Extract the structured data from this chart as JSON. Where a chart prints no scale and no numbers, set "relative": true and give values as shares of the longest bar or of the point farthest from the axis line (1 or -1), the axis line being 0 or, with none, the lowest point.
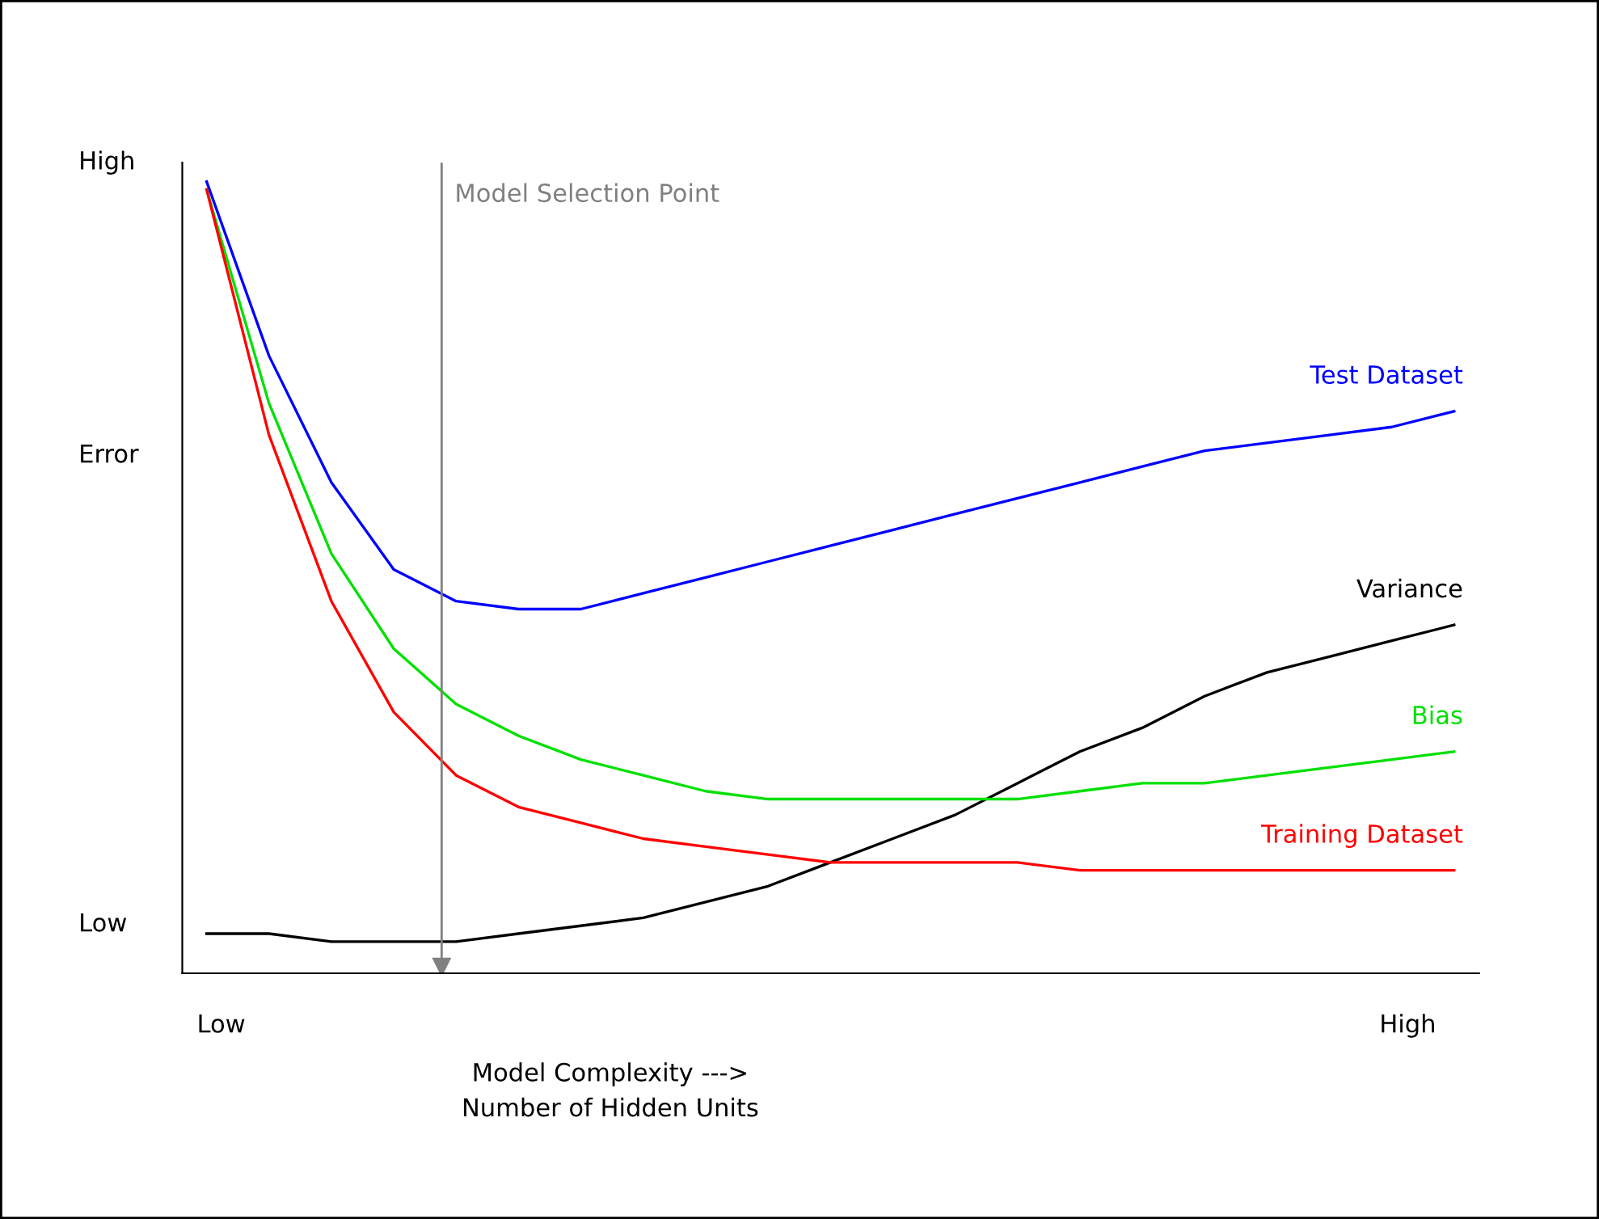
{
  "chart_data": {
    "type": "line",
    "relative": true,
    "ylabel": "Error",
    "xlabel": "Model Complexity --->\nNumber of Hidden Units",
    "categories": [
      null,
      null,
      null,
      null,
      null,
      null,
      null,
      null,
      null,
      null,
      null,
      null,
      null,
      null,
      null,
      null,
      null,
      null,
      null,
      null,
      null
    ],
    "series": [
      {
        "name": "Test Dataset",
        "color": "#0000ff",
        "values": [
          1.0,
          0.78,
          0.62,
          0.51,
          0.47,
          0.46,
          0.46,
          0.48,
          0.5,
          0.52,
          0.54,
          0.56,
          0.58,
          0.6,
          0.62,
          0.64,
          0.66,
          0.67,
          0.68,
          0.69,
          0.71
        ]
      },
      {
        "name": "Variance",
        "color": "#000000",
        "values": [
          0.05,
          0.05,
          0.04,
          0.04,
          0.04,
          0.05,
          0.06,
          0.07,
          0.09,
          0.11,
          0.14,
          0.17,
          0.2,
          0.24,
          0.28,
          0.31,
          0.35,
          0.38,
          0.4,
          0.42,
          0.44
        ]
      },
      {
        "name": "Bias",
        "color": "#00e000",
        "values": [
          0.99,
          0.72,
          0.53,
          0.41,
          0.34,
          0.3,
          0.27,
          0.25,
          0.23,
          0.22,
          0.22,
          0.22,
          0.22,
          0.22,
          0.23,
          0.24,
          0.24,
          0.25,
          0.26,
          0.27,
          0.28
        ]
      },
      {
        "name": "Training Dataset",
        "color": "#ff0000",
        "values": [
          0.99,
          0.68,
          0.47,
          0.33,
          0.25,
          0.21,
          0.19,
          0.17,
          0.16,
          0.15,
          0.14,
          0.14,
          0.14,
          0.14,
          0.13,
          0.13,
          0.13,
          0.13,
          0.13,
          0.13,
          0.13
        ]
      }
    ],
    "annotations": [
      "High",
      "Low",
      "Low",
      "High",
      "Model Selection Point"
    ],
    "legend": false,
    "marker": "none",
    "line_style": "solid"
  }
}
